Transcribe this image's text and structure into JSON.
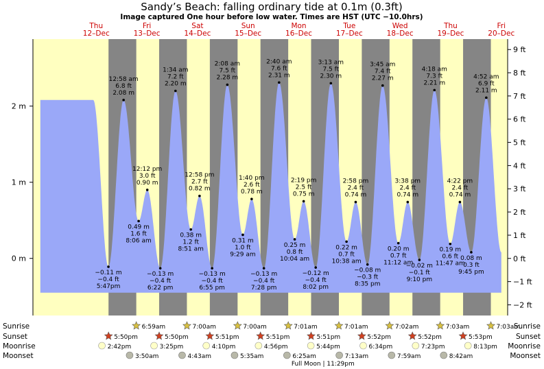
{
  "title": "Sandy’s Beach: falling  ordinary tide at 0.1m (0.3ft)",
  "subtitle": "Image captured One hour before low water. Times are HST (UTC −10.0hrs)",
  "colors": {
    "day": "#ffffc0",
    "night": "#858585",
    "water": "#9aa8f8",
    "day_label": "#cc0000",
    "sun_star": "#d8c040",
    "sunset_star": "#d04020",
    "moonrise": "#ffffc8",
    "moonset": "#b8b8a8"
  },
  "chart_data": {
    "type": "area",
    "x_unit": "hours from Thu 12-Dec 00:00 HST",
    "xlim": [
      -18,
      207
    ],
    "ylim_m": [
      -0.75,
      2.88
    ],
    "ylim_ft": [
      -2.46,
      9.45
    ],
    "left_axis_ticks": [
      {
        "v": 0,
        "label": "0 m"
      },
      {
        "v": 1,
        "label": "1 m"
      },
      {
        "v": 2,
        "label": "2 m"
      }
    ],
    "right_axis_ticks": [
      {
        "v": -2,
        "label": "−2 ft"
      },
      {
        "v": -1,
        "label": "−1 ft"
      },
      {
        "v": 0,
        "label": "0 ft"
      },
      {
        "v": 1,
        "label": "1 ft"
      },
      {
        "v": 2,
        "label": "2 ft"
      },
      {
        "v": 3,
        "label": "3 ft"
      },
      {
        "v": 4,
        "label": "4 ft"
      },
      {
        "v": 5,
        "label": "5 ft"
      },
      {
        "v": 6,
        "label": "6 ft"
      },
      {
        "v": 7,
        "label": "7 ft"
      },
      {
        "v": 8,
        "label": "8 ft"
      },
      {
        "v": 9,
        "label": "9 ft"
      }
    ],
    "days": [
      {
        "name": "Thu",
        "date": "12–Dec",
        "noon": 12
      },
      {
        "name": "Fri",
        "date": "13–Dec",
        "noon": 36
      },
      {
        "name": "Sat",
        "date": "14–Dec",
        "noon": 60
      },
      {
        "name": "Sun",
        "date": "15–Dec",
        "noon": 84
      },
      {
        "name": "Mon",
        "date": "16–Dec",
        "noon": 108
      },
      {
        "name": "Tue",
        "date": "17–Dec",
        "noon": 132
      },
      {
        "name": "Wed",
        "date": "18–Dec",
        "noon": 156
      },
      {
        "name": "Thu",
        "date": "19–Dec",
        "noon": 180
      },
      {
        "name": "Fri",
        "date": "20–Dec",
        "noon": 204
      }
    ],
    "nights": [
      [
        17.83,
        30.98
      ],
      [
        41.83,
        54.98
      ],
      [
        65.85,
        79.0
      ],
      [
        89.85,
        103.0
      ],
      [
        113.85,
        127.02
      ],
      [
        137.87,
        151.02
      ],
      [
        161.87,
        175.03
      ],
      [
        185.88,
        199.05
      ]
    ],
    "tide_extremes": [
      {
        "t": 17.78,
        "h": -0.11,
        "time": "5:47pm",
        "m": "−0.11 m",
        "ft": "−0.4 ft",
        "pos": "below"
      },
      {
        "t": 24.97,
        "h": 2.08,
        "time": "12:58 am",
        "m": "2.08 m",
        "ft": "6.8 ft",
        "pos": "above"
      },
      {
        "t": 36.2,
        "h": 0.9,
        "time": "12:12 pm",
        "m": "0.90 m",
        "ft": "3.0 ft",
        "pos": "above"
      },
      {
        "t": 32.1,
        "h": 0.49,
        "time": "8:06 am",
        "m": "0.49 m",
        "ft": "1.6 ft",
        "pos": "below"
      },
      {
        "t": 42.37,
        "h": -0.13,
        "time": "6:22 pm",
        "m": "−0.13 m",
        "ft": "−0.4 ft",
        "pos": "below"
      },
      {
        "t": 49.57,
        "h": 2.2,
        "time": "1:34 am",
        "m": "2.20 m",
        "ft": "7.2 ft",
        "pos": "above"
      },
      {
        "t": 56.85,
        "h": 0.38,
        "time": "8:51 am",
        "m": "0.38 m",
        "ft": "1.2 ft",
        "pos": "below"
      },
      {
        "t": 60.97,
        "h": 0.82,
        "time": "12:58 pm",
        "m": "0.82 m",
        "ft": "2.7 ft",
        "pos": "above"
      },
      {
        "t": 66.92,
        "h": -0.13,
        "time": "6:55 pm",
        "m": "−0.13 m",
        "ft": "−0.4 ft",
        "pos": "below"
      },
      {
        "t": 74.13,
        "h": 2.28,
        "time": "2:08 am",
        "m": "2.28 m",
        "ft": "7.5 ft",
        "pos": "above"
      },
      {
        "t": 81.48,
        "h": 0.31,
        "time": "9:29 am",
        "m": "0.31 m",
        "ft": "1.0 ft",
        "pos": "below"
      },
      {
        "t": 85.67,
        "h": 0.78,
        "time": "1:40 pm",
        "m": "0.78 m",
        "ft": "2.6 ft",
        "pos": "above"
      },
      {
        "t": 91.47,
        "h": -0.13,
        "time": "7:28 pm",
        "m": "−0.13 m",
        "ft": "−0.4 ft",
        "pos": "below"
      },
      {
        "t": 98.67,
        "h": 2.31,
        "time": "2:40 am",
        "m": "2.31 m",
        "ft": "7.6 ft",
        "pos": "above"
      },
      {
        "t": 106.07,
        "h": 0.25,
        "time": "10:04 am",
        "m": "0.25 m",
        "ft": "0.8 ft",
        "pos": "below"
      },
      {
        "t": 110.32,
        "h": 0.75,
        "time": "2:19 pm",
        "m": "0.75 m",
        "ft": "2.5 ft",
        "pos": "above"
      },
      {
        "t": 116.03,
        "h": -0.12,
        "time": "8:02 pm",
        "m": "−0.12 m",
        "ft": "−0.4 ft",
        "pos": "below"
      },
      {
        "t": 123.22,
        "h": 2.3,
        "time": "3:13 am",
        "m": "2.30 m",
        "ft": "7.5 ft",
        "pos": "above"
      },
      {
        "t": 130.63,
        "h": 0.22,
        "time": "10:38 am",
        "m": "0.22 m",
        "ft": "0.7 ft",
        "pos": "below"
      },
      {
        "t": 134.97,
        "h": 0.74,
        "time": "2:58 pm",
        "m": "0.74 m",
        "ft": "2.4 ft",
        "pos": "above"
      },
      {
        "t": 140.58,
        "h": -0.08,
        "time": "8:35 pm",
        "m": "−0.08 m",
        "ft": "−0.3 ft",
        "pos": "below"
      },
      {
        "t": 147.75,
        "h": 2.27,
        "time": "3:45 am",
        "m": "2.27 m",
        "ft": "7.4 ft",
        "pos": "above"
      },
      {
        "t": 155.2,
        "h": 0.2,
        "time": "11:12 am",
        "m": "0.20 m",
        "ft": "0.7 ft",
        "pos": "below"
      },
      {
        "t": 159.63,
        "h": 0.74,
        "time": "3:38 pm",
        "m": "0.74 m",
        "ft": "2.4 ft",
        "pos": "above"
      },
      {
        "t": 165.17,
        "h": -0.02,
        "time": "9:10 pm",
        "m": "−0.02 m",
        "ft": "−0.1 ft",
        "pos": "below"
      },
      {
        "t": 172.3,
        "h": 2.21,
        "time": "4:18 am",
        "m": "2.21 m",
        "ft": "7.3 ft",
        "pos": "above"
      },
      {
        "t": 179.78,
        "h": 0.19,
        "time": "11:47 am",
        "m": "0.19 m",
        "ft": "0.6 ft",
        "pos": "below"
      },
      {
        "t": 184.37,
        "h": 0.74,
        "time": "4:22 pm",
        "m": "0.74 m",
        "ft": "2.4 ft",
        "pos": "above"
      },
      {
        "t": 189.75,
        "h": 0.08,
        "time": "9:45 pm",
        "m": "0.08 m",
        "ft": "0.3 ft",
        "pos": "below"
      },
      {
        "t": 196.87,
        "h": 2.11,
        "time": "4:52 am",
        "m": "2.11 m",
        "ft": "6.9 ft",
        "pos": "above"
      }
    ],
    "sunrise_label": "Sunrise",
    "sunset_label": "Sunset",
    "moonrise_label": "Moonrise",
    "moonset_label": "Moonset",
    "sunrise": [
      {
        "t": 30.98,
        "time": "6:59am"
      },
      {
        "t": 55.0,
        "time": "7:00am"
      },
      {
        "t": 79.0,
        "time": "7:00am"
      },
      {
        "t": 103.02,
        "time": "7:01am"
      },
      {
        "t": 127.02,
        "time": "7:01am"
      },
      {
        "t": 151.03,
        "time": "7:02am"
      },
      {
        "t": 175.05,
        "time": "7:03am"
      },
      {
        "t": 199.05,
        "time": "7:03am"
      }
    ],
    "sunset": [
      {
        "t": 17.83,
        "time": "5:50pm"
      },
      {
        "t": 41.83,
        "time": "5:50pm"
      },
      {
        "t": 65.85,
        "time": "5:51pm"
      },
      {
        "t": 89.85,
        "time": "5:51pm"
      },
      {
        "t": 113.85,
        "time": "5:51pm"
      },
      {
        "t": 137.87,
        "time": "5:52pm"
      },
      {
        "t": 161.87,
        "time": "5:52pm"
      },
      {
        "t": 185.88,
        "time": "5:53pm"
      }
    ],
    "moonrise": [
      {
        "t": 14.7,
        "time": "2:42pm"
      },
      {
        "t": 39.42,
        "time": "3:25pm"
      },
      {
        "t": 64.17,
        "time": "4:10pm"
      },
      {
        "t": 88.93,
        "time": "4:56pm"
      },
      {
        "t": 113.73,
        "time": "5:44pm"
      },
      {
        "t": 138.57,
        "time": "6:34pm"
      },
      {
        "t": 163.38,
        "time": "7:23pm"
      },
      {
        "t": 188.22,
        "time": "8:13pm"
      }
    ],
    "moonset": [
      {
        "t": 27.83,
        "time": "3:50am"
      },
      {
        "t": 52.72,
        "time": "4:43am"
      },
      {
        "t": 77.58,
        "time": "5:35am"
      },
      {
        "t": 102.42,
        "time": "6:25am"
      },
      {
        "t": 127.22,
        "time": "7:13am"
      },
      {
        "t": 152.0,
        "time": "7:59am"
      },
      {
        "t": 176.7,
        "time": "8:42am"
      }
    ],
    "full_moon": {
      "t": 119.48,
      "label": "Full Moon | 11:29pm"
    }
  }
}
